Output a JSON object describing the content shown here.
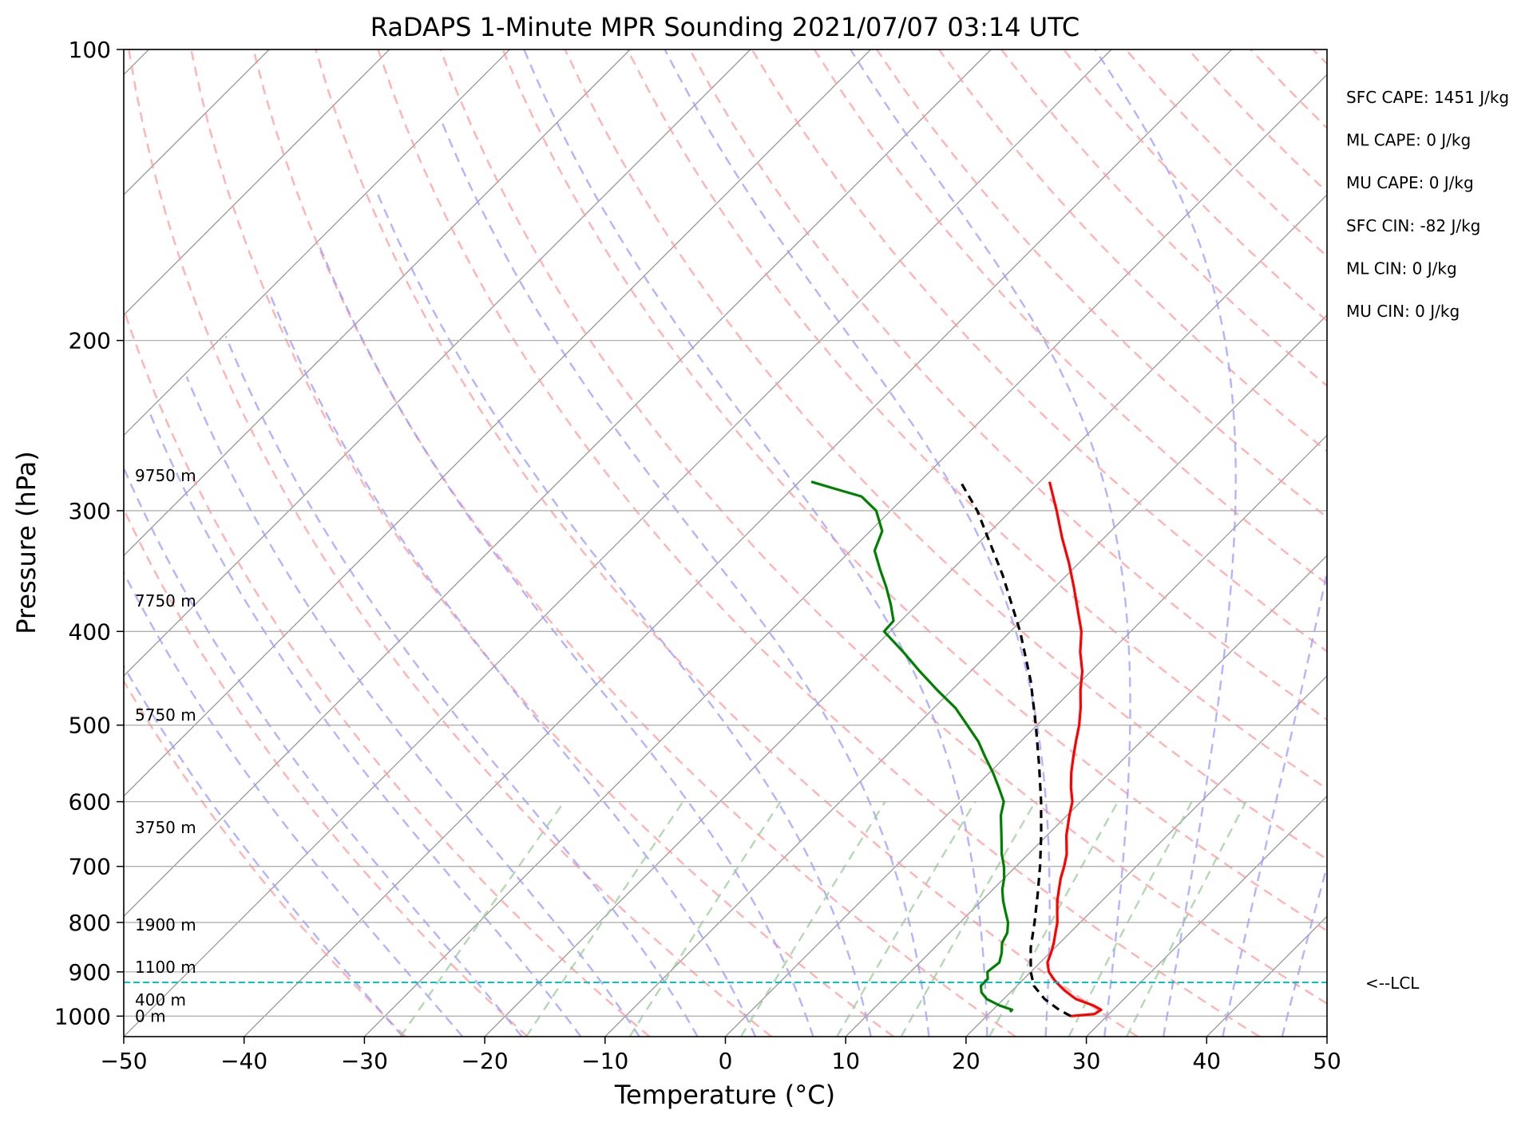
{
  "chart_data": {
    "type": "line",
    "chart_kind": "skew-T log-P sounding",
    "title": "RaDAPS 1-Minute MPR Sounding 2021/07/07 03:14 UTC",
    "xlabel": "Temperature (°C)",
    "ylabel": "Pressure (hPa)",
    "xlim": [
      -50,
      50
    ],
    "ylim": [
      1050,
      100
    ],
    "y_scale": "log",
    "skew_degrees": 45,
    "x_ticks": [
      "−50",
      "−40",
      "−30",
      "−20",
      "−10",
      "0",
      "10",
      "20",
      "30",
      "40",
      "50"
    ],
    "x_tick_values": [
      -50,
      -40,
      -30,
      -20,
      -10,
      0,
      10,
      20,
      30,
      40,
      50
    ],
    "y_ticks": [
      "100",
      "200",
      "300",
      "400",
      "500",
      "600",
      "700",
      "800",
      "900",
      "1000"
    ],
    "y_tick_values": [
      100,
      200,
      300,
      400,
      500,
      600,
      700,
      800,
      900,
      1000
    ],
    "grid": true,
    "colors": {
      "temperature": "#ff0000",
      "dewpoint": "#008000",
      "parcel": "#000000",
      "lcl": "#00bfbf",
      "dry_adiabats": "#ff9999",
      "moist_adiabats": "#9999ff",
      "mixing_ratio": "#99cc99",
      "isotherms": "#999999"
    },
    "series": [
      {
        "key": "temperature",
        "values": [
          {
            "p": 1000,
            "t": 27.0
          },
          {
            "p": 995,
            "t": 28.8
          },
          {
            "p": 985,
            "t": 29.0
          },
          {
            "p": 975,
            "t": 28.0
          },
          {
            "p": 960,
            "t": 26.0
          },
          {
            "p": 940,
            "t": 24.3
          },
          {
            "p": 920,
            "t": 22.8
          },
          {
            "p": 900,
            "t": 21.5
          },
          {
            "p": 880,
            "t": 20.6
          },
          {
            "p": 860,
            "t": 20.1
          },
          {
            "p": 840,
            "t": 19.5
          },
          {
            "p": 820,
            "t": 18.8
          },
          {
            "p": 800,
            "t": 18.1
          },
          {
            "p": 780,
            "t": 17.2
          },
          {
            "p": 760,
            "t": 16.3
          },
          {
            "p": 740,
            "t": 15.5
          },
          {
            "p": 720,
            "t": 14.7
          },
          {
            "p": 700,
            "t": 14.0
          },
          {
            "p": 680,
            "t": 13.2
          },
          {
            "p": 650,
            "t": 11.6
          },
          {
            "p": 620,
            "t": 10.2
          },
          {
            "p": 600,
            "t": 9.3
          },
          {
            "p": 580,
            "t": 8.0
          },
          {
            "p": 560,
            "t": 6.8
          },
          {
            "p": 540,
            "t": 5.7
          },
          {
            "p": 520,
            "t": 4.6
          },
          {
            "p": 500,
            "t": 3.5
          },
          {
            "p": 480,
            "t": 2.2
          },
          {
            "p": 460,
            "t": 0.7
          },
          {
            "p": 440,
            "t": -0.7
          },
          {
            "p": 420,
            "t": -2.5
          },
          {
            "p": 400,
            "t": -4.1
          },
          {
            "p": 380,
            "t": -6.2
          },
          {
            "p": 360,
            "t": -8.4
          },
          {
            "p": 340,
            "t": -10.8
          },
          {
            "p": 320,
            "t": -13.5
          },
          {
            "p": 300,
            "t": -16.2
          },
          {
            "p": 280,
            "t": -19.2
          }
        ]
      },
      {
        "key": "dewpoint",
        "values": [
          {
            "p": 990,
            "t": 21.6
          },
          {
            "p": 985,
            "t": 21.6
          },
          {
            "p": 975,
            "t": 20.2
          },
          {
            "p": 960,
            "t": 18.6
          },
          {
            "p": 945,
            "t": 17.6
          },
          {
            "p": 930,
            "t": 17.0
          },
          {
            "p": 915,
            "t": 17.0
          },
          {
            "p": 900,
            "t": 16.4
          },
          {
            "p": 880,
            "t": 16.6
          },
          {
            "p": 860,
            "t": 16.0
          },
          {
            "p": 840,
            "t": 15.2
          },
          {
            "p": 820,
            "t": 14.8
          },
          {
            "p": 800,
            "t": 14.0
          },
          {
            "p": 780,
            "t": 12.9
          },
          {
            "p": 760,
            "t": 11.8
          },
          {
            "p": 740,
            "t": 10.8
          },
          {
            "p": 720,
            "t": 10.0
          },
          {
            "p": 700,
            "t": 9.0
          },
          {
            "p": 680,
            "t": 7.8
          },
          {
            "p": 650,
            "t": 6.2
          },
          {
            "p": 620,
            "t": 4.5
          },
          {
            "p": 600,
            "t": 3.6
          },
          {
            "p": 580,
            "t": 2.0
          },
          {
            "p": 560,
            "t": 0.3
          },
          {
            "p": 540,
            "t": -1.6
          },
          {
            "p": 520,
            "t": -3.5
          },
          {
            "p": 500,
            "t": -5.8
          },
          {
            "p": 480,
            "t": -8.2
          },
          {
            "p": 460,
            "t": -11.2
          },
          {
            "p": 440,
            "t": -14.2
          },
          {
            "p": 420,
            "t": -17.2
          },
          {
            "p": 400,
            "t": -20.5
          },
          {
            "p": 390,
            "t": -20.6
          },
          {
            "p": 375,
            "t": -22.2
          },
          {
            "p": 360,
            "t": -24.0
          },
          {
            "p": 345,
            "t": -26.0
          },
          {
            "p": 330,
            "t": -28.0
          },
          {
            "p": 315,
            "t": -29.0
          },
          {
            "p": 300,
            "t": -31.2
          },
          {
            "p": 290,
            "t": -33.6
          },
          {
            "p": 285,
            "t": -36.3
          },
          {
            "p": 280,
            "t": -39.0
          }
        ]
      },
      {
        "key": "parcel",
        "values": [
          {
            "p": 1000,
            "t": 27.0
          },
          {
            "p": 985,
            "t": 25.5
          },
          {
            "p": 960,
            "t": 23.4
          },
          {
            "p": 930,
            "t": 21.4
          },
          {
            "p": 900,
            "t": 20.0
          },
          {
            "p": 850,
            "t": 18.0
          },
          {
            "p": 800,
            "t": 16.2
          },
          {
            "p": 750,
            "t": 14.2
          },
          {
            "p": 700,
            "t": 12.0
          },
          {
            "p": 650,
            "t": 9.5
          },
          {
            "p": 600,
            "t": 6.7
          },
          {
            "p": 550,
            "t": 3.5
          },
          {
            "p": 500,
            "t": -0.1
          },
          {
            "p": 450,
            "t": -4.2
          },
          {
            "p": 400,
            "t": -9.2
          },
          {
            "p": 350,
            "t": -15.3
          },
          {
            "p": 300,
            "t": -22.8
          },
          {
            "p": 280,
            "t": -26.6
          }
        ]
      }
    ],
    "lcl": {
      "pressure": 923,
      "label": "<--LCL"
    },
    "height_labels": [
      {
        "p": 1000,
        "text": "0 m"
      },
      {
        "p": 962,
        "text": "400 m"
      },
      {
        "p": 890,
        "text": "1100 m"
      },
      {
        "p": 805,
        "text": "1900 m"
      },
      {
        "p": 638,
        "text": "3750 m"
      },
      {
        "p": 488,
        "text": "5750 m"
      },
      {
        "p": 372,
        "text": "7750 m"
      },
      {
        "p": 276,
        "text": "9750 m"
      }
    ],
    "indices": [
      "SFC CAPE: 1451 J/kg",
      "ML CAPE: 0 J/kg",
      "MU CAPE: 0 J/kg",
      "SFC CIN: -82 J/kg",
      "ML CIN: 0 J/kg",
      "MU CIN: 0 J/kg"
    ]
  }
}
